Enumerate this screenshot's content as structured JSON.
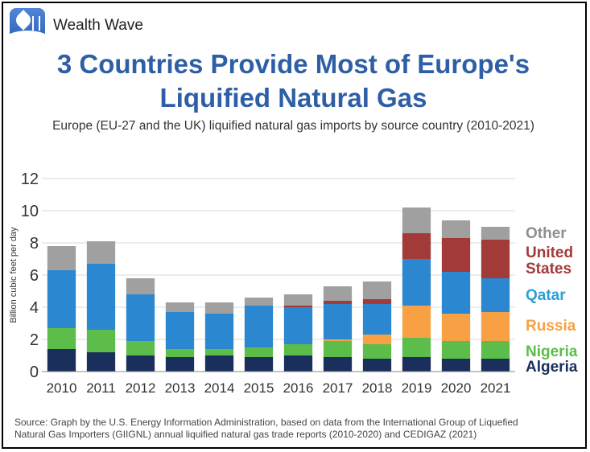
{
  "brand": {
    "name": "Wealth Wave",
    "logo_icon": "wealth-wave-logo-icon"
  },
  "title_line1": "3 Countries Provide Most of Europe's",
  "title_line2": "Liquified Natural Gas",
  "subtitle": "Europe (EU-27 and the UK) liquified natural gas imports by source country (2010-2021)",
  "source_line1": "Source: Graph by the U.S. Energy Information Administration, based on data from the International Group of Liquefied",
  "source_line2": "Natural Gas Importers (GIIGNL) annual liquified natural gas trade reports (2010-2020) and CEDIGAZ (2021)",
  "chart_data": {
    "type": "bar",
    "stacked": true,
    "title": "",
    "xlabel": "",
    "ylabel": "Billion cubic feet per day",
    "ylim": [
      0,
      12
    ],
    "yticks": [
      "0",
      "2",
      "4",
      "6",
      "8",
      "10",
      "12"
    ],
    "categories": [
      "2010",
      "2011",
      "2012",
      "2013",
      "2014",
      "2015",
      "2016",
      "2017",
      "2018",
      "2019",
      "2020",
      "2021"
    ],
    "grid": "horizontal",
    "legend_position": "right",
    "series": [
      {
        "name": "Algeria",
        "color": "#1a2f5c",
        "values": [
          1.4,
          1.2,
          1.0,
          0.9,
          1.0,
          0.9,
          1.0,
          0.9,
          0.8,
          0.9,
          0.8,
          0.8
        ]
      },
      {
        "name": "Nigeria",
        "color": "#5cbd4a",
        "values": [
          1.3,
          1.4,
          0.9,
          0.5,
          0.4,
          0.6,
          0.7,
          1.0,
          0.9,
          1.2,
          1.1,
          1.1
        ]
      },
      {
        "name": "Russia",
        "color": "#f7a144",
        "values": [
          0,
          0,
          0,
          0,
          0,
          0,
          0,
          0.1,
          0.6,
          2.0,
          1.7,
          1.8
        ]
      },
      {
        "name": "Qatar",
        "color": "#2b87cf",
        "values": [
          3.6,
          4.1,
          2.9,
          2.3,
          2.2,
          2.6,
          2.3,
          2.2,
          1.9,
          2.9,
          2.6,
          2.1
        ]
      },
      {
        "name": "United States",
        "color": "#a33a3a",
        "values": [
          0,
          0,
          0,
          0,
          0,
          0,
          0.1,
          0.2,
          0.3,
          1.6,
          2.1,
          2.4
        ]
      },
      {
        "name": "Other",
        "color": "#a0a0a0",
        "values": [
          1.5,
          1.4,
          1.0,
          0.6,
          0.7,
          0.5,
          0.7,
          0.9,
          1.1,
          1.6,
          1.1,
          0.8
        ]
      }
    ],
    "legend_labels": [
      {
        "series": "Other",
        "lines": [
          "Other"
        ],
        "color": "#8f8f8f"
      },
      {
        "series": "United States",
        "lines": [
          "United",
          "States"
        ],
        "color": "#a33a3a"
      },
      {
        "series": "Qatar",
        "lines": [
          "Qatar"
        ],
        "color": "#2b9fd6"
      },
      {
        "series": "Russia",
        "lines": [
          "Russia"
        ],
        "color": "#f7a144"
      },
      {
        "series": "Nigeria",
        "lines": [
          "Nigeria"
        ],
        "color": "#5cbd4a"
      },
      {
        "series": "Algeria",
        "lines": [
          "Algeria"
        ],
        "color": "#1a2f5c"
      }
    ]
  }
}
